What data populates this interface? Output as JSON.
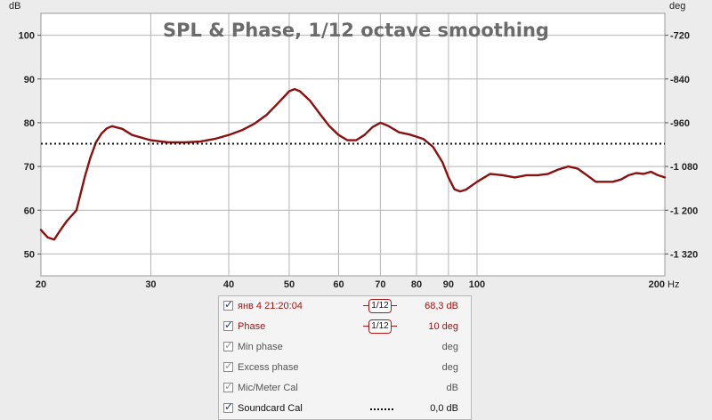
{
  "chart_data": {
    "type": "line",
    "title": "SPL & Phase, 1/12 octave smoothing",
    "x_scale": "log",
    "xlim": [
      20,
      200
    ],
    "x_unit": "Hz",
    "x_ticks": [
      "20",
      "30",
      "40",
      "50",
      "60",
      "70",
      "80",
      "90",
      "100",
      "200"
    ],
    "ylim_left": [
      45,
      105
    ],
    "y_left_label": "dB",
    "y_left_ticks": [
      "100",
      "90",
      "80",
      "70",
      "60",
      "50"
    ],
    "ylim_right": [
      -1380,
      -660
    ],
    "y_right_label": "deg",
    "y_right_ticks": [
      "-720",
      "-840",
      "-960",
      "-1 080",
      "-1 200",
      "-1 320"
    ],
    "grid": true,
    "series": [
      {
        "name": "янв 4 21:20:04",
        "color": "#8b1010",
        "style": "solid",
        "x": [
          20,
          20.5,
          21,
          21.5,
          22,
          22.8,
          23.5,
          24,
          24.5,
          25,
          25.5,
          26,
          27,
          28,
          30,
          32,
          34,
          36,
          38,
          40,
          42,
          44,
          46,
          48,
          50,
          51,
          52,
          54,
          56,
          58,
          60,
          62,
          64,
          66,
          68,
          70,
          72,
          75,
          78,
          82,
          85,
          88,
          90,
          92,
          94,
          96,
          100,
          105,
          110,
          115,
          120,
          125,
          130,
          135,
          140,
          145,
          150,
          155,
          160,
          165,
          170,
          175,
          180,
          185,
          190,
          195,
          200
        ],
        "y": [
          55.5,
          53.8,
          53.3,
          55.5,
          57.5,
          60.0,
          67.5,
          72.0,
          75.5,
          77.5,
          78.7,
          79.2,
          78.6,
          77.2,
          76.0,
          75.5,
          75.5,
          75.7,
          76.3,
          77.2,
          78.3,
          79.8,
          81.8,
          84.5,
          87.2,
          87.7,
          87.2,
          85.0,
          82.0,
          79.2,
          77.2,
          76.0,
          76.0,
          77.2,
          79.0,
          80.0,
          79.3,
          77.8,
          77.3,
          76.3,
          74.5,
          71.0,
          67.5,
          64.8,
          64.3,
          64.7,
          66.5,
          68.3,
          68.0,
          67.5,
          68.0,
          68.0,
          68.3,
          69.3,
          70.0,
          69.5,
          68.0,
          66.5,
          66.5,
          66.5,
          67.0,
          68.0,
          68.5,
          68.3,
          68.8,
          68.0,
          67.5
        ]
      },
      {
        "name": "Soundcard Cal",
        "color": "#111111",
        "style": "dotted",
        "x": [
          20,
          200
        ],
        "y": [
          75.2,
          75.2
        ]
      }
    ]
  },
  "legend": {
    "rows": [
      {
        "label": "янв 4 21:20:04",
        "checked": true,
        "enabled": true,
        "smoothing": "1/12",
        "value": "68,3 dB",
        "color": "#a01414"
      },
      {
        "label": "Phase",
        "checked": true,
        "enabled": true,
        "smoothing": "1/12",
        "value": "10 deg",
        "color": "#a01414"
      },
      {
        "label": "Min phase",
        "checked": true,
        "enabled": false,
        "value": "deg",
        "color": "#555555"
      },
      {
        "label": "Excess phase",
        "checked": true,
        "enabled": false,
        "value": "deg",
        "color": "#555555"
      },
      {
        "label": "Mic/Meter Cal",
        "checked": true,
        "enabled": false,
        "value": "dB",
        "color": "#555555"
      },
      {
        "label": "Soundcard Cal",
        "checked": true,
        "enabled": true,
        "line": "dotted",
        "value": "0,0 dB",
        "color": "#111111"
      }
    ]
  }
}
